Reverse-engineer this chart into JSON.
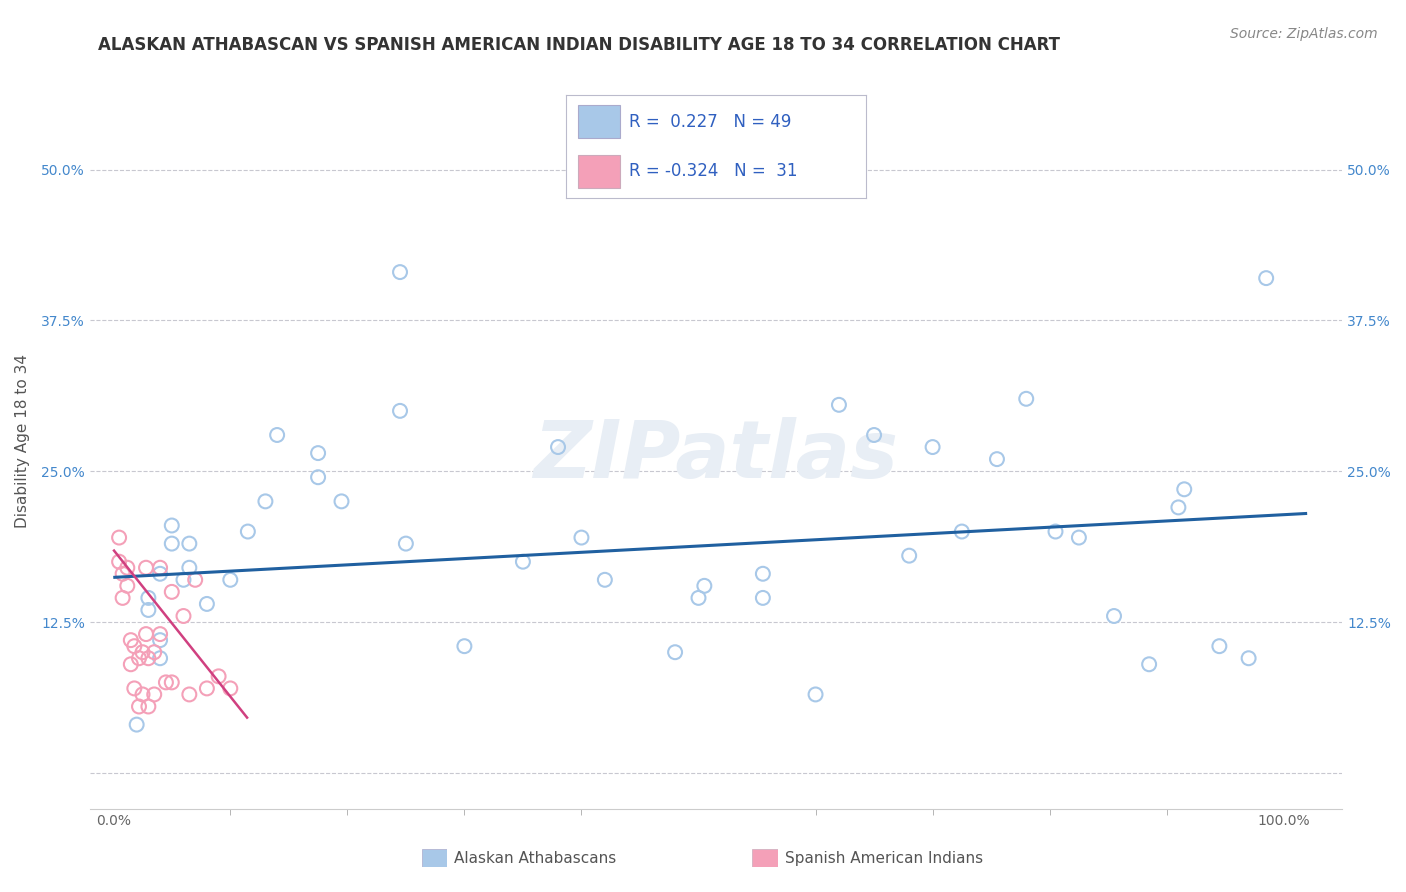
{
  "title": "ALASKAN ATHABASCAN VS SPANISH AMERICAN INDIAN DISABILITY AGE 18 TO 34 CORRELATION CHART",
  "source": "Source: ZipAtlas.com",
  "ylabel": "Disability Age 18 to 34",
  "xlim": [
    -0.02,
    1.05
  ],
  "ylim": [
    -0.03,
    0.58
  ],
  "yticks": [
    0.0,
    0.125,
    0.25,
    0.375,
    0.5
  ],
  "yticklabels": [
    "",
    "12.5%",
    "25.0%",
    "37.5%",
    "50.0%"
  ],
  "blue_color": "#a8c8e8",
  "pink_color": "#f4a0b8",
  "blue_line_color": "#2060a0",
  "pink_line_color": "#d04080",
  "legend_text_color": "#3060c0",
  "grid_color": "#c8c8d0",
  "background_color": "#ffffff",
  "blue_scatter_x": [
    0.245,
    0.245,
    0.195,
    0.175,
    0.175,
    0.13,
    0.05,
    0.05,
    0.065,
    0.065,
    0.04,
    0.03,
    0.03,
    0.04,
    0.04,
    0.115,
    0.14,
    0.62,
    0.65,
    0.7,
    0.725,
    0.755,
    0.78,
    0.805,
    0.825,
    0.855,
    0.885,
    0.91,
    0.945,
    0.97,
    0.985,
    0.5,
    0.42,
    0.555,
    0.48,
    0.6,
    0.68,
    0.555,
    0.3,
    0.35,
    0.25,
    0.1,
    0.08,
    0.06,
    0.38,
    0.4,
    0.02,
    0.505,
    0.915
  ],
  "blue_scatter_y": [
    0.415,
    0.3,
    0.225,
    0.265,
    0.245,
    0.225,
    0.205,
    0.19,
    0.19,
    0.17,
    0.165,
    0.145,
    0.135,
    0.11,
    0.095,
    0.2,
    0.28,
    0.305,
    0.28,
    0.27,
    0.2,
    0.26,
    0.31,
    0.2,
    0.195,
    0.13,
    0.09,
    0.22,
    0.105,
    0.095,
    0.41,
    0.145,
    0.16,
    0.145,
    0.1,
    0.065,
    0.18,
    0.165,
    0.105,
    0.175,
    0.19,
    0.16,
    0.14,
    0.16,
    0.27,
    0.195,
    0.04,
    0.155,
    0.235
  ],
  "pink_scatter_x": [
    0.005,
    0.005,
    0.008,
    0.008,
    0.012,
    0.012,
    0.015,
    0.015,
    0.018,
    0.018,
    0.022,
    0.022,
    0.025,
    0.025,
    0.028,
    0.028,
    0.03,
    0.03,
    0.035,
    0.035,
    0.04,
    0.04,
    0.045,
    0.05,
    0.05,
    0.06,
    0.065,
    0.07,
    0.08,
    0.09,
    0.1
  ],
  "pink_scatter_y": [
    0.195,
    0.175,
    0.165,
    0.145,
    0.17,
    0.155,
    0.11,
    0.09,
    0.105,
    0.07,
    0.095,
    0.055,
    0.1,
    0.065,
    0.17,
    0.115,
    0.095,
    0.055,
    0.1,
    0.065,
    0.17,
    0.115,
    0.075,
    0.15,
    0.075,
    0.13,
    0.065,
    0.16,
    0.07,
    0.08,
    0.07
  ],
  "blue_trend_x0": 0.0,
  "blue_trend_x1": 1.02,
  "blue_trend_y0": 0.162,
  "blue_trend_y1": 0.215,
  "pink_trend_x0": 0.0,
  "pink_trend_x1": 0.115,
  "pink_trend_y0": 0.185,
  "pink_trend_y1": 0.045,
  "title_fontsize": 12,
  "axis_label_fontsize": 11,
  "tick_fontsize": 10,
  "legend_fontsize": 12,
  "source_fontsize": 10,
  "marker_size": 100,
  "marker_linewidth": 1.5,
  "watermark_text": "ZIPatlas",
  "legend_label1": "R =  0.227   N = 49",
  "legend_label2": "R = -0.324   N =  31",
  "bottom_label1": "Alaskan Athabascans",
  "bottom_label2": "Spanish American Indians"
}
